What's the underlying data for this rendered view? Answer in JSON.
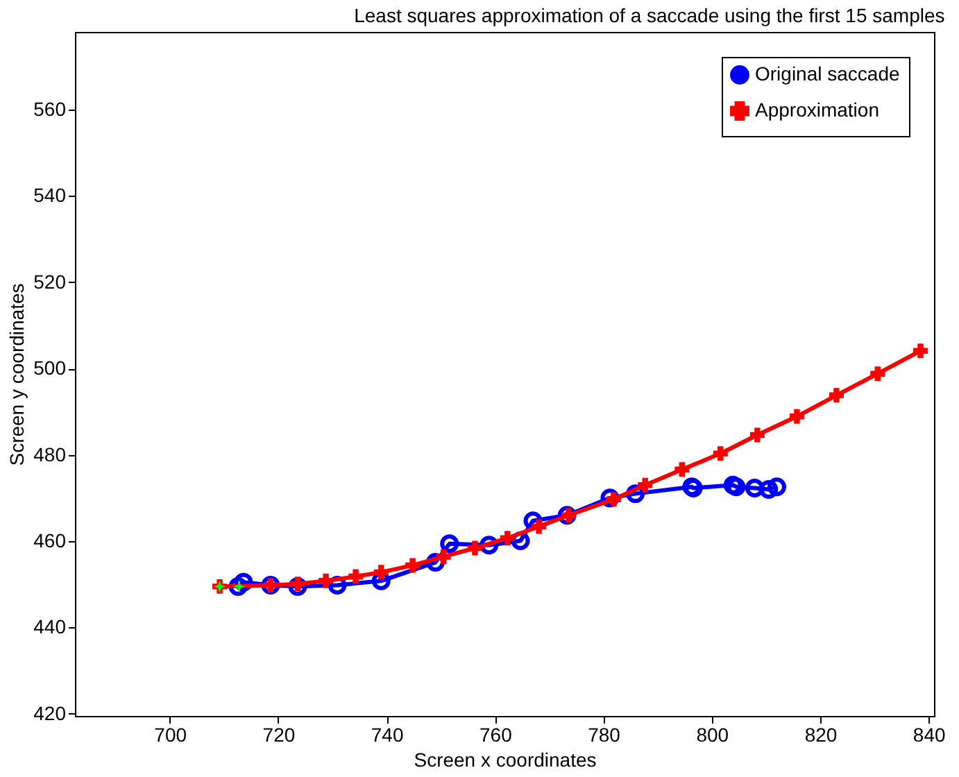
{
  "chart_data": {
    "type": "line",
    "title": "Least squares approximation of a saccade using the first 15 samples",
    "xlabel": "Screen x coordinates",
    "ylabel": "Screen y coordinates",
    "xlim": [
      682.5,
      841
    ],
    "ylim": [
      419.5,
      578
    ],
    "xticks": [
      700,
      720,
      740,
      760,
      780,
      800,
      820,
      840
    ],
    "yticks": [
      420,
      440,
      460,
      480,
      500,
      520,
      540,
      560
    ],
    "grid": false,
    "legend": "top right",
    "series": [
      {
        "name": "Original saccade",
        "color": "#0000ff",
        "marker": "circle",
        "x": [
          712.6,
          713.6,
          718.6,
          723.6,
          730.9,
          739.0,
          749.0,
          751.6,
          758.9,
          764.7,
          767.0,
          773.3,
          781.2,
          785.9,
          796.3,
          796.6,
          803.9,
          804.5,
          807.9,
          810.5,
          812.0
        ],
        "values": [
          449.5,
          450.5,
          449.8,
          449.5,
          449.8,
          450.8,
          455.1,
          459.4,
          459.1,
          460.1,
          464.7,
          466.0,
          470.0,
          471.0,
          472.6,
          472.3,
          473.0,
          472.6,
          472.3,
          472.0,
          472.6
        ]
      },
      {
        "name": "Approximation",
        "color": "#ff0000",
        "marker": "cross",
        "x": [
          709.2,
          718.6,
          723.6,
          728.8,
          734.3,
          739.0,
          744.8,
          750.5,
          756.3,
          762.3,
          768.1,
          773.6,
          781.9,
          787.7,
          794.5,
          801.6,
          808.4,
          815.7,
          823.0,
          830.6,
          838.5
        ],
        "values": [
          449.5,
          449.8,
          450.1,
          450.8,
          451.8,
          452.8,
          454.4,
          456.4,
          458.4,
          460.7,
          463.4,
          466.0,
          469.7,
          473.0,
          476.6,
          480.3,
          484.6,
          488.9,
          493.8,
          498.8,
          504.1
        ]
      },
      {
        "type": "scatter",
        "color": "#00ff00",
        "marker": "star",
        "x": [
          709.2,
          712.8
        ],
        "values": [
          449.5,
          449.5
        ]
      }
    ]
  }
}
